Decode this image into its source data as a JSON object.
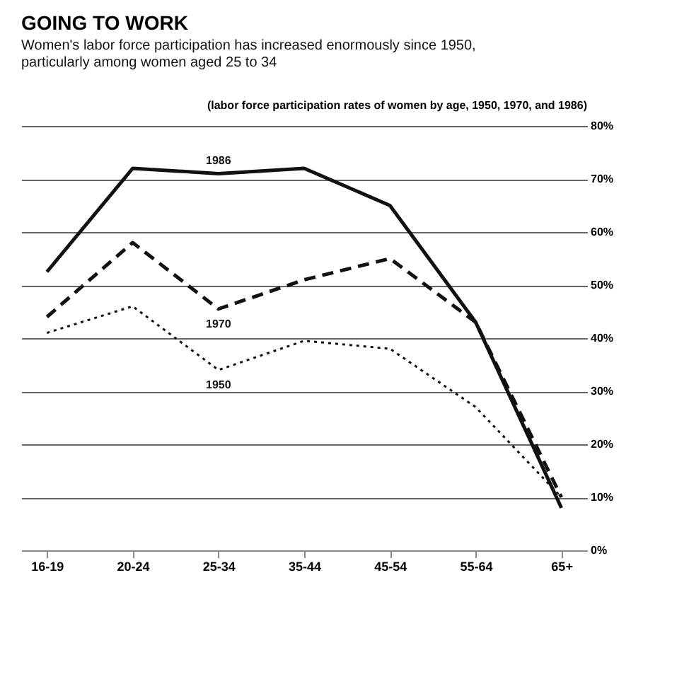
{
  "chart_data": {
    "type": "line",
    "title": "GOING TO WORK",
    "subtitle": "Women's labor force participation has increased enormously since 1950, particularly among women aged 25 to 34",
    "annotations": [
      "(labor force participation rates of women by age, 1950, 1970, and 1986)"
    ],
    "categories": [
      "16-19",
      "20-24",
      "25-34",
      "35-44",
      "45-54",
      "55-64",
      "65+"
    ],
    "series": [
      {
        "name": "1986",
        "color": "#111111",
        "line_style": "solid",
        "values": [
          52.5,
          72,
          71,
          72,
          65,
          43,
          8
        ]
      },
      {
        "name": "1970",
        "color": "#111111",
        "line_style": "dashed",
        "values": [
          44,
          58,
          45.5,
          51,
          55,
          43,
          10
        ]
      },
      {
        "name": "1950",
        "color": "#111111",
        "line_style": "dotted",
        "values": [
          41,
          46,
          34,
          39.5,
          38,
          27,
          10
        ]
      }
    ],
    "ylim": [
      0,
      80
    ],
    "yticks": [
      {
        "value": 0,
        "label": "0%"
      },
      {
        "value": 10,
        "label": "10%"
      },
      {
        "value": 20,
        "label": "20%"
      },
      {
        "value": 30,
        "label": "30%"
      },
      {
        "value": 40,
        "label": "40%"
      },
      {
        "value": 50,
        "label": "50%"
      },
      {
        "value": 60,
        "label": "60%"
      },
      {
        "value": 70,
        "label": "70%"
      },
      {
        "value": 80,
        "label": "80%"
      }
    ],
    "grid": "y",
    "legend": false,
    "marker": "none"
  }
}
